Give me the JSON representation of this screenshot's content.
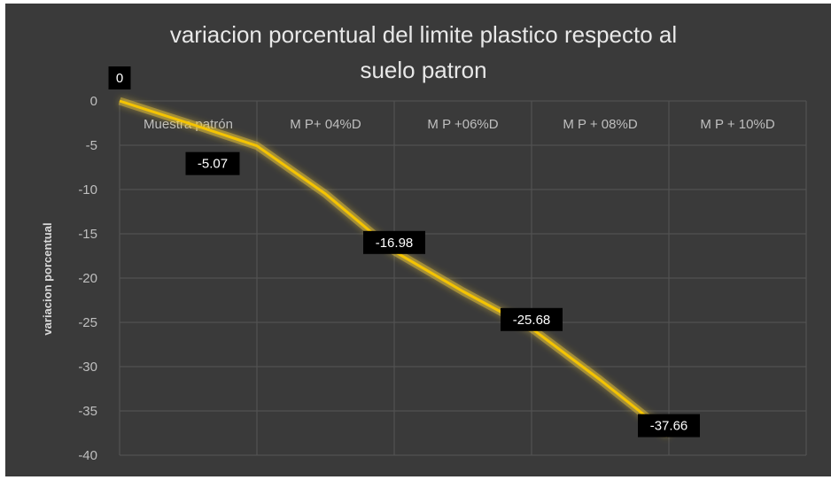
{
  "chart_data": {
    "type": "line",
    "title": "variacion porcentual del limite plastico respecto al suelo patron",
    "title_lines": [
      "variacion porcentual del limite plastico respecto al",
      "suelo patron"
    ],
    "xlabel": "",
    "ylabel": "variacion porcentual",
    "categories": [
      "Muestra patrón",
      "M P+ 04%D",
      "M P +06%D",
      "M P + 08%D",
      "M P + 10%D"
    ],
    "x": [
      0,
      0.5,
      1.0,
      1.5,
      2.0,
      2.5,
      3.0,
      3.5,
      4.0
    ],
    "values": [
      0,
      -2.5,
      -5.07,
      -10.5,
      -16.98,
      -21.5,
      -25.68,
      -31.5,
      -37.66
    ],
    "data_labels": [
      {
        "x": 0,
        "y": 0,
        "text": "0"
      },
      {
        "x": 1.0,
        "y": -5.07,
        "text": "-5.07"
      },
      {
        "x": 2.0,
        "y": -16.98,
        "text": "-16.98"
      },
      {
        "x": 3.0,
        "y": -25.68,
        "text": "-25.68"
      },
      {
        "x": 4.0,
        "y": -37.66,
        "text": "-37.66"
      }
    ],
    "ylim": [
      -40,
      0
    ],
    "yticks": [
      0,
      -5,
      -10,
      -15,
      -20,
      -25,
      -30,
      -35,
      -40
    ],
    "grid": true,
    "legend": "none",
    "colors": {
      "background": "#3a3a3a",
      "line": "#f5c400",
      "line_glow": "#e8c53a",
      "grid": "#555555",
      "label_bg": "#000000"
    }
  }
}
